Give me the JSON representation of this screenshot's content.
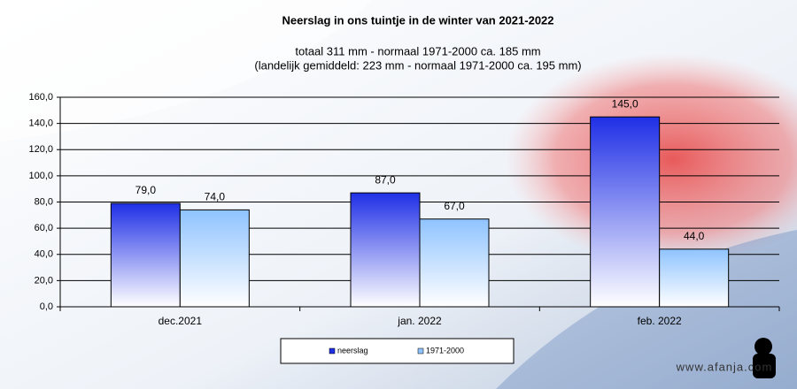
{
  "chart_data": {
    "type": "bar",
    "title": "Neerslag in ons tuintje in de winter van 2021-2022",
    "subtitle": [
      "totaal 311 mm  - normaal  1971-2000  ca. 185 mm",
      "(landelijk  gemiddeld:  223 mm  - normaal  1971-2000  ca. 195 mm)"
    ],
    "categories": [
      "dec.2021",
      "jan. 2022",
      "feb. 2022"
    ],
    "series": [
      {
        "name": "neerslag",
        "color": "#1f2fe6",
        "values": [
          79,
          87,
          145
        ],
        "value_labels": [
          "79,0",
          "87,0",
          "145,0"
        ]
      },
      {
        "name": "1971-2000",
        "color": "#8fc3ff",
        "values": [
          74,
          67,
          44
        ],
        "value_labels": [
          "74,0",
          "67,0",
          "44,0"
        ]
      }
    ],
    "ylim": [
      0,
      160
    ],
    "yticks": [
      {
        "value": 0,
        "label": "0,0"
      },
      {
        "value": 20,
        "label": "20,0"
      },
      {
        "value": 40,
        "label": "40,0"
      },
      {
        "value": 60,
        "label": "60,0"
      },
      {
        "value": 80,
        "label": "80,0"
      },
      {
        "value": 100,
        "label": "100,0"
      },
      {
        "value": 120,
        "label": "120,0"
      },
      {
        "value": 140,
        "label": "140,0"
      },
      {
        "value": 160,
        "label": "160,0"
      }
    ],
    "grid": true,
    "legend": "bottom",
    "watermark": "www.afanja.com"
  }
}
